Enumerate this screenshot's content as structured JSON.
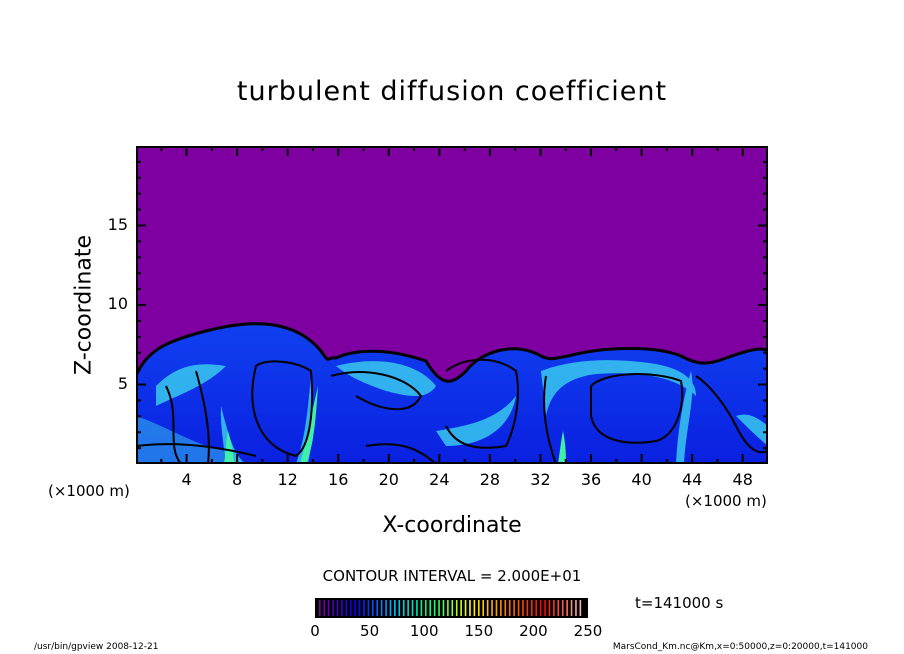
{
  "chart_data": {
    "type": "heatmap",
    "title": "turbulent diffusion coefficient",
    "xlabel": "X-coordinate",
    "ylabel": "Z-coordinate",
    "x_unit": "(×1000 m)",
    "y_unit": "(×1000 m)",
    "xlim": [
      0,
      50
    ],
    "ylim": [
      0,
      20
    ],
    "x_ticks": [
      4,
      8,
      12,
      16,
      20,
      24,
      28,
      32,
      36,
      40,
      44,
      48
    ],
    "y_ticks": [
      5,
      10,
      15
    ],
    "contour_interval": "CONTOUR INTERVAL = 2.000E+01",
    "colorbar": {
      "range": [
        0,
        250
      ],
      "ticks": [
        "0",
        "50",
        "100",
        "150",
        "200",
        "250"
      ],
      "colors": [
        "#7f00a0",
        "#0000ff",
        "#00c0ff",
        "#00ff80",
        "#ffff00",
        "#ff8000",
        "#ff0000",
        "#ffb0b0"
      ]
    },
    "time_label": "t=141000 s",
    "colors": {
      "background_field": "#7f00a0",
      "low": "#0018e8",
      "mid": "#30c0f0",
      "high": "#40f0a8"
    }
  },
  "footer": {
    "left": "/usr/bin/gpview   2008-12-21",
    "right": "MarsCond_Km.nc@Km,x=0:50000,z=0:20000,t=141000"
  }
}
